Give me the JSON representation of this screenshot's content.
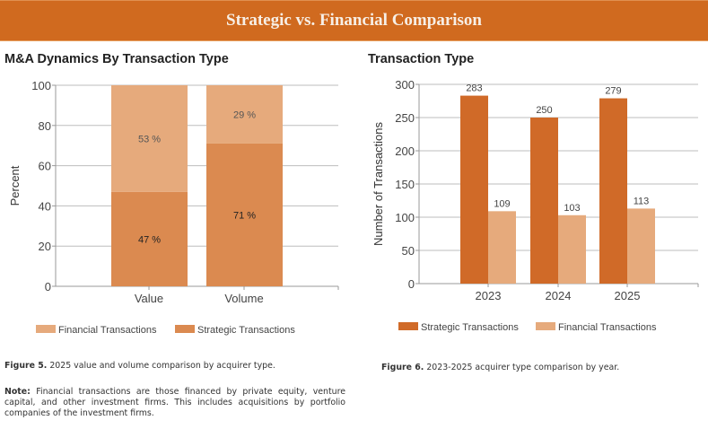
{
  "banner": {
    "title": "Strategic vs. Financial Comparison"
  },
  "colors": {
    "banner": "#d06a1f",
    "strategic_dark": "#d06a28",
    "strategic_left": "#db8a50",
    "financial": "#e6aa7c",
    "grid": "#bdbdbd"
  },
  "left": {
    "title": "M&A Dynamics By Transaction Type",
    "caption_label": "Figure 5.",
    "caption_text": " 2025 value and volume comparison by acquirer type.",
    "note_label": "Note:",
    "note_text": " Financial transactions are those financed by private equity, venture capital, and other investment firms. This includes acquisitions by portfolio companies of the investment firms."
  },
  "right": {
    "title": "Transaction Type",
    "caption_label": "Figure 6.",
    "caption_text": " 2023-2025 acquirer type comparison by year."
  },
  "chart_data": [
    {
      "type": "bar",
      "stacked": true,
      "title": "M&A Dynamics By Transaction Type",
      "xlabel": "",
      "ylabel": "Percent",
      "ylim": [
        0,
        100
      ],
      "yticks": [
        "0",
        "20",
        "40",
        "60",
        "80",
        "100"
      ],
      "categories": [
        "Value",
        "Volume"
      ],
      "series": [
        {
          "name": "Strategic Transactions",
          "values": [
            47,
            71
          ],
          "labels": [
            "47 %",
            "71 %"
          ]
        },
        {
          "name": "Financial Transactions",
          "values": [
            53,
            29
          ],
          "labels": [
            "53 %",
            "29 %"
          ]
        }
      ],
      "legend": [
        "Financial Transactions",
        "Strategic Transactions"
      ],
      "legend_position": "bottom",
      "grid": true
    },
    {
      "type": "bar",
      "stacked": false,
      "title": "Transaction Type",
      "xlabel": "",
      "ylabel": "Number of Transactions",
      "ylim": [
        0,
        300
      ],
      "yticks": [
        "0",
        "50",
        "100",
        "150",
        "200",
        "250",
        "300"
      ],
      "categories": [
        "2023",
        "2024",
        "2025"
      ],
      "series": [
        {
          "name": "Strategic Transactions",
          "values": [
            283,
            250,
            279
          ],
          "labels": [
            "283",
            "250",
            "279"
          ]
        },
        {
          "name": "Financial Transactions",
          "values": [
            109,
            103,
            113
          ],
          "labels": [
            "109",
            "103",
            "113"
          ]
        }
      ],
      "legend": [
        "Strategic Transactions",
        "Financial Transactions"
      ],
      "legend_position": "bottom",
      "grid": true
    }
  ]
}
